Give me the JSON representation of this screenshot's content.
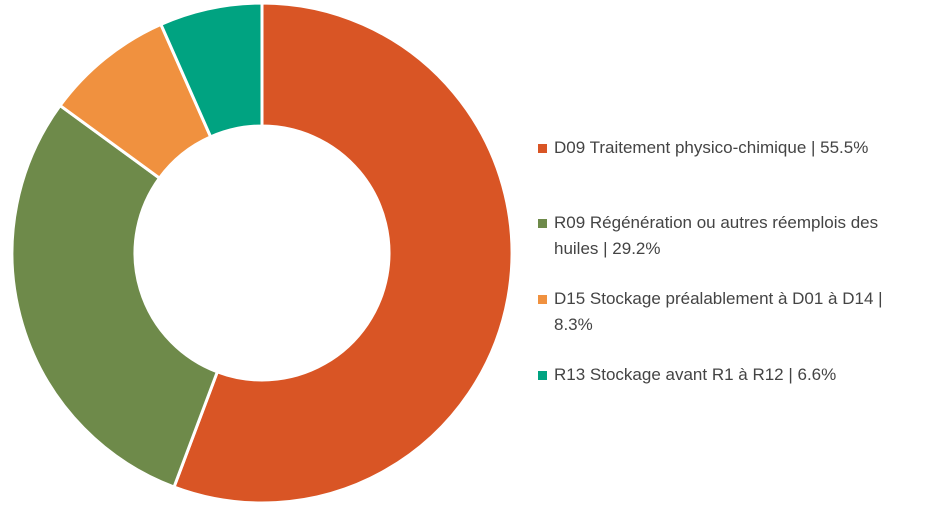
{
  "chart_data": {
    "type": "donut",
    "categories": [
      "D09 Traitement physico-chimique | 55.5%",
      "R09 Régénération ou autres réemplois des huiles | 29.2%",
      "D15 Stockage préalablement à D01 à D14 | 8.3%",
      "R13 Stockage avant R1 à R12 | 6.6%"
    ],
    "values": [
      55.5,
      29.2,
      8.3,
      6.6
    ],
    "colors": [
      "#d95525",
      "#6e8a4a",
      "#f0913f",
      "#00a381"
    ],
    "legend": "right"
  }
}
